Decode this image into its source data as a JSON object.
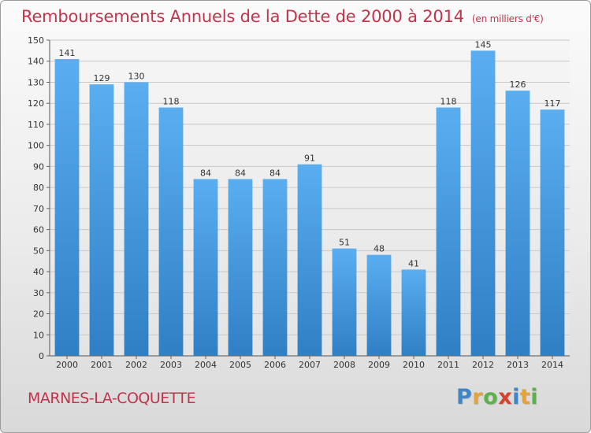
{
  "header": {
    "title": "Remboursements Annuels de la Dette de 2000 à 2014",
    "unit_note": "(en milliers d'€)"
  },
  "footer": {
    "commune": "MARNES-LA-COQUETTE",
    "logo": [
      "P",
      "r",
      "o",
      "x",
      "i",
      "t",
      "i"
    ]
  },
  "colors": {
    "bar": "#4a9fe3",
    "title": "#c0344c",
    "logo": [
      "#3e86c6",
      "#e2a43a",
      "#5bb14a",
      "#d6412c",
      "#3e86c6",
      "#e2a43a",
      "#5bb14a"
    ]
  },
  "chart_data": {
    "type": "bar",
    "title": "Remboursements Annuels de la Dette de 2000 à 2014",
    "xlabel": "",
    "ylabel": "",
    "categories": [
      "2000",
      "2001",
      "2002",
      "2003",
      "2004",
      "2005",
      "2006",
      "2007",
      "2008",
      "2009",
      "2010",
      "2011",
      "2012",
      "2013",
      "2014"
    ],
    "values": [
      141,
      129,
      130,
      118,
      84,
      84,
      84,
      91,
      51,
      48,
      41,
      118,
      145,
      126,
      117
    ],
    "ylim": [
      0,
      150
    ],
    "yticks": [
      0,
      10,
      20,
      30,
      40,
      50,
      60,
      70,
      80,
      90,
      100,
      110,
      120,
      130,
      140,
      150
    ],
    "grid": true
  }
}
